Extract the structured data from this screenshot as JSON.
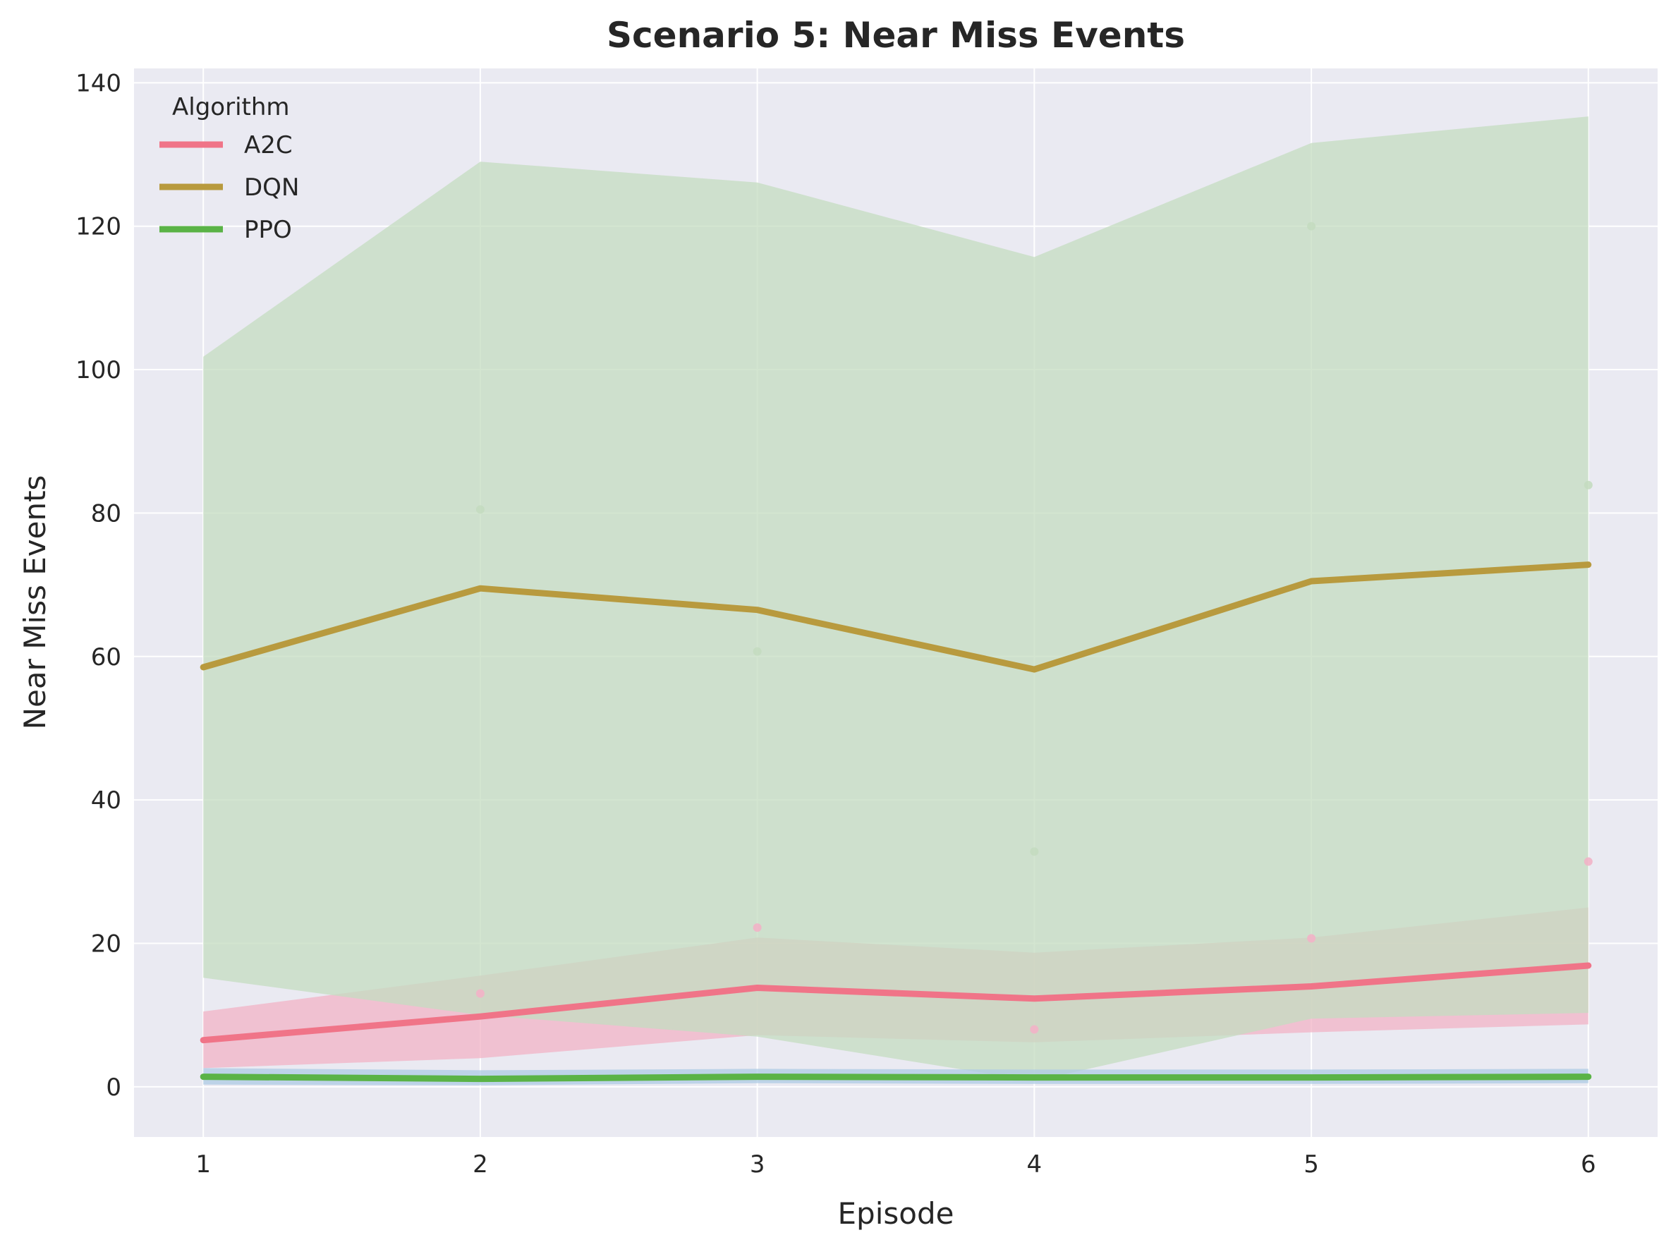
{
  "chart_data": {
    "type": "line",
    "title": "Scenario 5: Near Miss Events",
    "xlabel": "Episode",
    "ylabel": "Near Miss Events",
    "x": [
      1,
      2,
      3,
      4,
      5,
      6
    ],
    "xticks": [
      "1",
      "2",
      "3",
      "4",
      "5",
      "6"
    ],
    "yticks": [
      0,
      20,
      40,
      60,
      80,
      100,
      120,
      140
    ],
    "xlim": [
      0.75,
      6.25
    ],
    "ylim": [
      -7,
      142
    ],
    "grid": true,
    "legend": {
      "title": "Algorithm",
      "position": "top-left"
    },
    "series": [
      {
        "name": "A2C",
        "color": "#f07488",
        "values": [
          6.5,
          9.8,
          13.8,
          12.3,
          14.0,
          16.9
        ],
        "band_lower": [
          2.6,
          4.0,
          7.2,
          6.2,
          7.6,
          8.7
        ],
        "band_upper": [
          10.5,
          15.5,
          20.8,
          18.7,
          20.8,
          25.0
        ],
        "band_color": "#f2b3c6",
        "points": [
          null,
          13.0,
          22.2,
          8.0,
          20.7,
          31.4
        ]
      },
      {
        "name": "DQN",
        "color": "#b89a3e",
        "values": [
          58.5,
          69.5,
          66.5,
          58.2,
          70.5,
          72.8
        ],
        "band_lower": [
          15.2,
          10.0,
          7.0,
          0.8,
          9.5,
          10.3
        ],
        "band_upper": [
          101.8,
          129.0,
          126.1,
          115.7,
          131.6,
          135.3
        ],
        "band_color": "#c4dcc0",
        "points": [
          null,
          80.5,
          60.7,
          32.8,
          120.0,
          83.9
        ]
      },
      {
        "name": "PPO",
        "color": "#5ab346",
        "values": [
          1.4,
          1.1,
          1.4,
          1.3,
          1.3,
          1.4
        ],
        "band_lower": [
          0.3,
          0.2,
          0.5,
          0.4,
          0.4,
          0.5
        ],
        "band_upper": [
          2.6,
          2.3,
          2.5,
          2.4,
          2.4,
          2.5
        ],
        "band_color": "#aecbe4",
        "points": []
      }
    ]
  }
}
